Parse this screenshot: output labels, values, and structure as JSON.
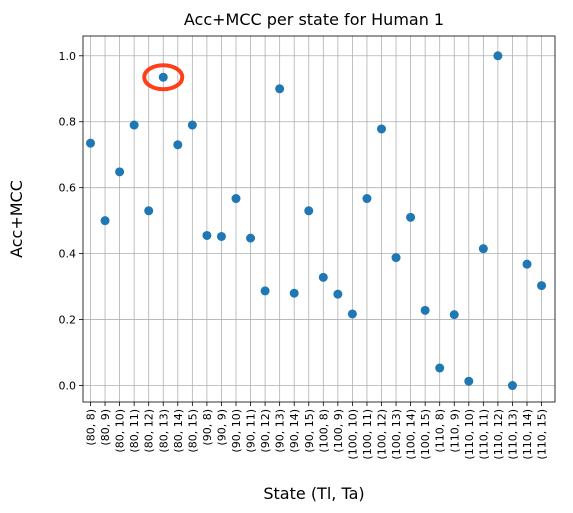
{
  "chart_data": {
    "type": "scatter",
    "title": "Acc+MCC per state for Human 1",
    "xlabel": "State (Tl, Ta)",
    "ylabel": "Acc+MCC",
    "categories": [
      "(80, 8)",
      "(80, 9)",
      "(80, 10)",
      "(80, 11)",
      "(80, 12)",
      "(80, 13)",
      "(80, 14)",
      "(80, 15)",
      "(90, 8)",
      "(90, 9)",
      "(90, 10)",
      "(90, 11)",
      "(90, 12)",
      "(90, 13)",
      "(90, 14)",
      "(90, 15)",
      "(100, 8)",
      "(100, 9)",
      "(100, 10)",
      "(100, 11)",
      "(100, 12)",
      "(100, 13)",
      "(100, 14)",
      "(100, 15)",
      "(110, 8)",
      "(110, 9)",
      "(110, 10)",
      "(110, 11)",
      "(110, 12)",
      "(110, 13)",
      "(110, 14)",
      "(110, 15)"
    ],
    "values": [
      0.735,
      0.5,
      0.648,
      0.79,
      0.53,
      0.935,
      0.73,
      0.79,
      0.455,
      0.452,
      0.567,
      0.447,
      0.287,
      0.9,
      0.28,
      0.53,
      0.328,
      0.277,
      0.217,
      0.567,
      0.778,
      0.388,
      0.51,
      0.228,
      0.053,
      0.215,
      0.013,
      0.415,
      1.0,
      0.0,
      0.368,
      0.303
    ],
    "yticks": [
      "0.0",
      "0.2",
      "0.4",
      "0.6",
      "0.8",
      "1.0"
    ],
    "ylim": [
      -0.05,
      1.06
    ],
    "grid": true,
    "marker_color": "#1f77b4",
    "highlight": {
      "index": 5,
      "color": "#ff2a00",
      "shape": "ellipse"
    }
  }
}
